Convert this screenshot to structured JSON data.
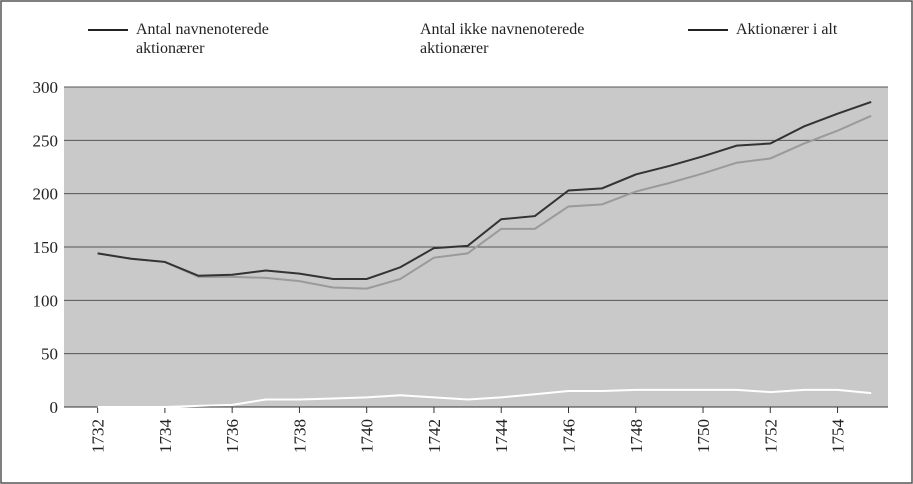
{
  "chart_data": {
    "type": "line",
    "x": [
      1732,
      1733,
      1734,
      1735,
      1736,
      1737,
      1738,
      1739,
      1740,
      1741,
      1742,
      1743,
      1744,
      1745,
      1746,
      1747,
      1748,
      1749,
      1750,
      1751,
      1752,
      1753,
      1754,
      1755
    ],
    "series": [
      {
        "name": "Antal navnenoterede aktionærer",
        "color": "#9a9a9a",
        "values": [
          144,
          139,
          136,
          122,
          122,
          121,
          118,
          112,
          111,
          120,
          140,
          144,
          167,
          167,
          188,
          190,
          202,
          210,
          219,
          229,
          233,
          247,
          259,
          273
        ]
      },
      {
        "name": "Antal ikke navnenoterede aktionærer",
        "color": "#ffffff",
        "values": [
          0,
          0,
          0,
          1,
          2,
          7,
          7,
          8,
          9,
          11,
          9,
          7,
          9,
          12,
          15,
          15,
          16,
          16,
          16,
          16,
          14,
          16,
          16,
          13
        ]
      },
      {
        "name": "Aktionærer i alt",
        "color": "#333333",
        "values": [
          144,
          139,
          136,
          123,
          124,
          128,
          125,
          120,
          120,
          131,
          149,
          151,
          176,
          179,
          203,
          205,
          218,
          226,
          235,
          245,
          247,
          263,
          275,
          286
        ]
      }
    ],
    "xlim": [
      1731,
      1755.5
    ],
    "xticks": [
      1732,
      1734,
      1736,
      1738,
      1740,
      1742,
      1744,
      1746,
      1748,
      1750,
      1752,
      1754
    ],
    "ylim": [
      0,
      300
    ],
    "yticks": [
      0,
      50,
      100,
      150,
      200,
      250,
      300
    ],
    "grid": true
  }
}
